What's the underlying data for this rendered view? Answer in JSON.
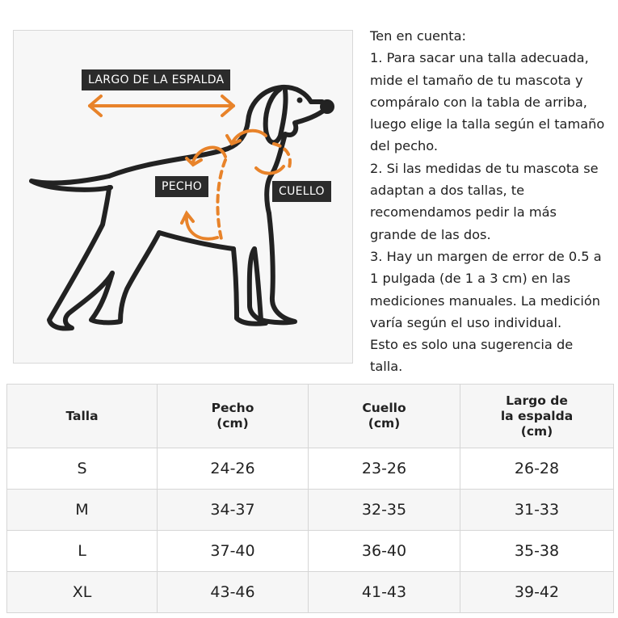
{
  "diagram": {
    "labels": {
      "back_length": "LARGO DE LA ESPALDA",
      "chest": "PECHO",
      "neck": "CUELLO"
    },
    "accent_color": "#e8832a",
    "outline_color": "#222222"
  },
  "notes": {
    "lines": [
      "Ten en cuenta:",
      " 1. Para sacar una talla adecuada,",
      "mide el tamaño de tu mascota y",
      "compáralo con la tabla de arriba,",
      "luego elige la talla según el tamaño",
      "del pecho.",
      " 2. Si las medidas de tu mascota se",
      "adaptan a dos tallas, te",
      "recomendamos pedir la más",
      "grande de las dos.",
      " 3. Hay un margen de error de 0.5 a",
      "1 pulgada (de 1 a 3 cm) en las",
      "mediciones manuales. La medición",
      "varía según el uso individual.",
      " Esto es solo una sugerencia de",
      "talla."
    ]
  },
  "table": {
    "headers": [
      [
        "Talla"
      ],
      [
        "Pecho",
        "(cm)"
      ],
      [
        "Cuello",
        "(cm)"
      ],
      [
        "Largo de",
        "la espalda",
        "(cm)"
      ]
    ],
    "rows": [
      [
        "S",
        "24-26",
        "23-26",
        "26-28"
      ],
      [
        "M",
        "34-37",
        "32-35",
        "31-33"
      ],
      [
        "L",
        "37-40",
        "36-40",
        "35-38"
      ],
      [
        "XL",
        "43-46",
        "41-43",
        "39-42"
      ]
    ]
  }
}
